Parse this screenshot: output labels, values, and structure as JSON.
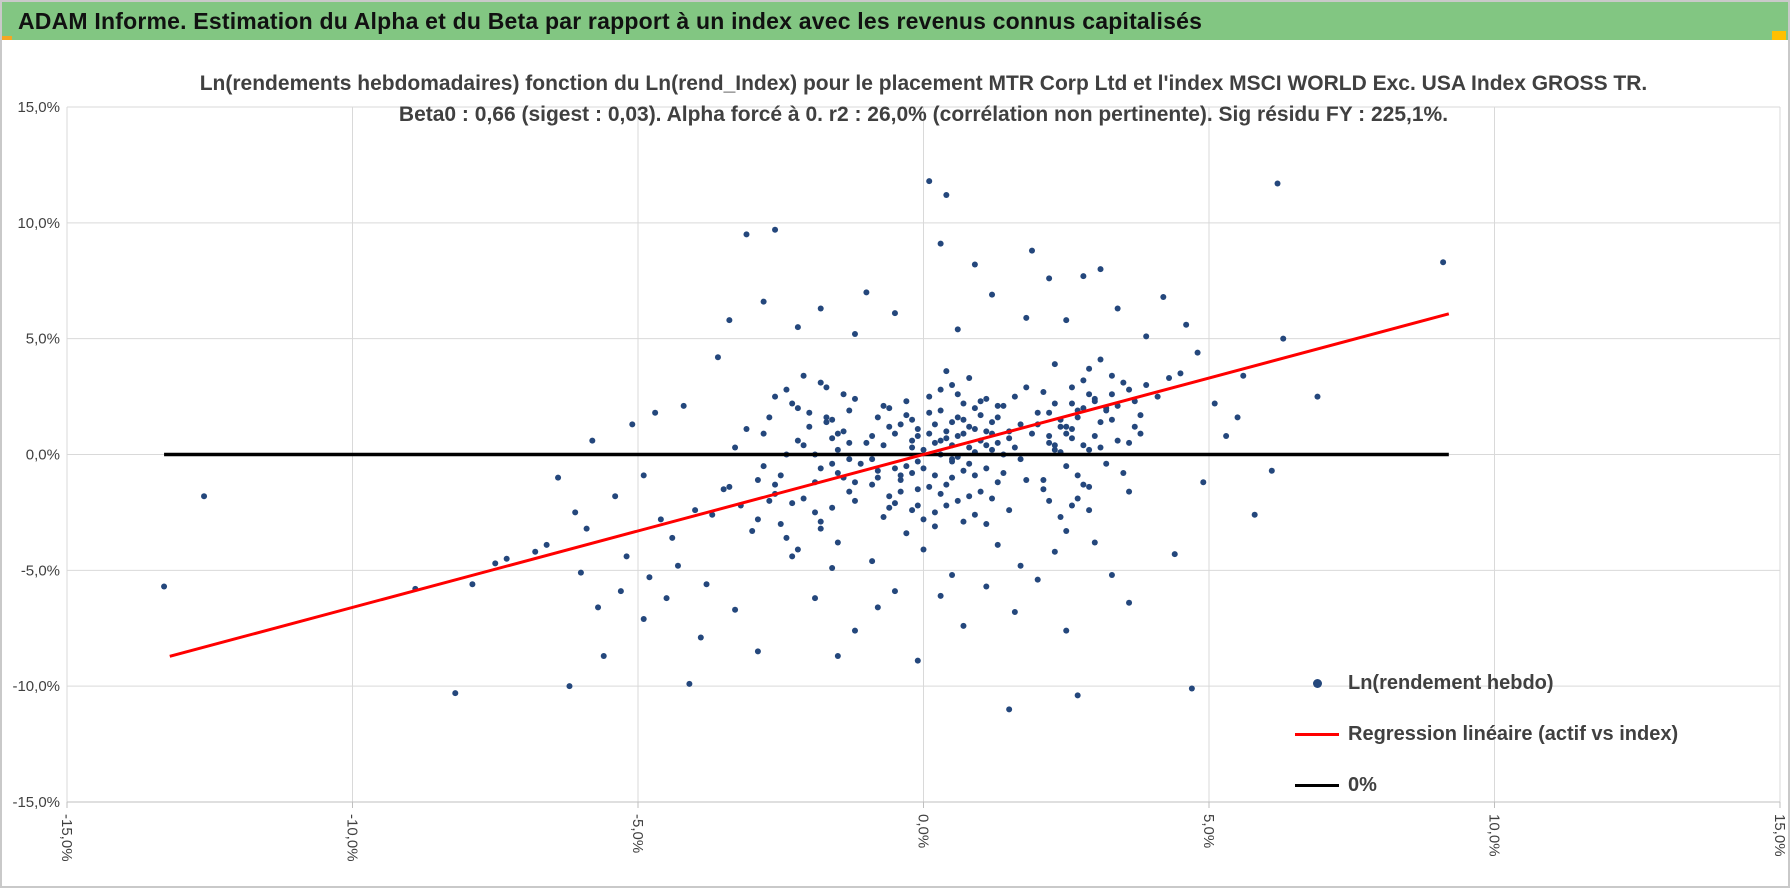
{
  "header": {
    "title": "ADAM Informe. Estimation du Alpha et du Beta par rapport à un index avec les revenus connus capitalisés",
    "bar_color": "#82C682",
    "accent_left_color": "#F5A623",
    "accent_right_color": "#FFC000"
  },
  "chart_data": {
    "type": "scatter",
    "title_line1": "Ln(rendements hebdomadaires) fonction du Ln(rend_Index) pour le placement MTR Corp Ltd et l'index MSCI WORLD Exc. USA Index GROSS TR.",
    "title_line2": "Beta0 : 0,66 (sigest : 0,03).  Alpha forcé à 0. r2 : 26,0% (corrélation non pertinente). Sig résidu FY : 225,1%.",
    "stats": {
      "beta0": "0,66",
      "sigest": "0,03",
      "alpha": "forcé à 0",
      "r2": "26,0%",
      "correlation_note": "corrélation non pertinente",
      "sig_residu_fy": "225,1%"
    },
    "xlabel": "",
    "ylabel": "",
    "xlim": [
      -15,
      15
    ],
    "ylim": [
      -15,
      15
    ],
    "grid": true,
    "x_tick_values": [
      -15,
      -10,
      -5,
      0,
      5,
      10,
      15
    ],
    "y_tick_values": [
      -15,
      -10,
      -5,
      0,
      5,
      10,
      15
    ],
    "x_tick_labels": [
      "-15,0%",
      "-10,0%",
      "-5,0%",
      "0,0%",
      "5,0%",
      "10,0%",
      "15,0%"
    ],
    "y_tick_labels": [
      "-15,0%",
      "-10,0%",
      "-5,0%",
      "0,0%",
      "5,0%",
      "10,0%",
      "15,0%"
    ],
    "colors": {
      "point": "#24477C",
      "regression": "#FF0000",
      "zero_line": "#000000",
      "grid": "#D9D9D9",
      "axis": "#BFBFBF",
      "text": "#404040"
    },
    "legend": [
      {
        "label": "Ln(rendement hebdo)",
        "marker": "point",
        "color": "#24477C"
      },
      {
        "label": "Regression linéaire (actif vs index)",
        "marker": "line",
        "color": "#FF0000"
      },
      {
        "label": "0%",
        "marker": "line",
        "color": "#000000"
      }
    ],
    "legend_position": "inside-bottom-right",
    "regression_line": {
      "beta": 0.66,
      "alpha": 0,
      "x_start": -13.2,
      "x_end": 9.2
    },
    "zero_line": {
      "y": 0,
      "x_start": -13.3,
      "x_end": 9.2
    },
    "points": [
      [
        0.2,
        0.5
      ],
      [
        0.5,
        -0.3
      ],
      [
        -0.1,
        0.8
      ],
      [
        0.8,
        1.2
      ],
      [
        1.1,
        -0.6
      ],
      [
        -0.4,
        -1.1
      ],
      [
        0.3,
        1.9
      ],
      [
        0.9,
        0.1
      ],
      [
        -0.7,
        0.4
      ],
      [
        1.4,
        2.1
      ],
      [
        0.1,
        -1.4
      ],
      [
        0.6,
        2.6
      ],
      [
        -0.2,
        -0.8
      ],
      [
        1.2,
        0.9
      ],
      [
        0.4,
        -2.2
      ],
      [
        -0.9,
        -0.2
      ],
      [
        0.7,
        1.5
      ],
      [
        1.6,
        0.3
      ],
      [
        -0.3,
        2.3
      ],
      [
        0.2,
        -0.9
      ],
      [
        1.0,
        0.6
      ],
      [
        -0.6,
        -1.8
      ],
      [
        0.5,
        3.0
      ],
      [
        1.3,
        -1.2
      ],
      [
        -0.1,
        1.1
      ],
      [
        0.8,
        -0.4
      ],
      [
        2.0,
        1.8
      ],
      [
        -0.5,
        0.9
      ],
      [
        0.3,
        -1.7
      ],
      [
        1.1,
        2.4
      ],
      [
        0.0,
        0.2
      ],
      [
        0.9,
        -2.6
      ],
      [
        -0.8,
        1.6
      ],
      [
        1.5,
        1.0
      ],
      [
        0.4,
        0.7
      ],
      [
        -0.2,
        -2.4
      ],
      [
        0.6,
        -0.1
      ],
      [
        1.8,
        2.9
      ],
      [
        -0.4,
        1.3
      ],
      [
        0.1,
        0.9
      ],
      [
        1.2,
        -1.9
      ],
      [
        -1.0,
        0.5
      ],
      [
        0.7,
        2.2
      ],
      [
        1.4,
        -0.8
      ],
      [
        -0.3,
        -0.5
      ],
      [
        0.5,
        1.4
      ],
      [
        2.2,
        0.8
      ],
      [
        -0.6,
        2.0
      ],
      [
        0.2,
        -3.1
      ],
      [
        1.0,
        1.7
      ],
      [
        0.3,
        0.0
      ],
      [
        -0.1,
        -1.5
      ],
      [
        0.8,
        3.3
      ],
      [
        1.7,
        -0.2
      ],
      [
        -0.7,
        -2.7
      ],
      [
        0.4,
        1.0
      ],
      [
        1.1,
        0.4
      ],
      [
        -0.4,
        -0.9
      ],
      [
        0.6,
        -2.0
      ],
      [
        1.3,
        1.6
      ],
      [
        0.0,
        -0.6
      ],
      [
        0.9,
        1.1
      ],
      [
        -0.9,
        -1.3
      ],
      [
        1.6,
        2.5
      ],
      [
        0.5,
        -1.0
      ],
      [
        -0.2,
        0.6
      ],
      [
        0.7,
        -2.9
      ],
      [
        2.4,
        1.2
      ],
      [
        -0.5,
        -2.1
      ],
      [
        0.1,
        1.8
      ],
      [
        1.2,
        0.2
      ],
      [
        -0.8,
        -0.7
      ],
      [
        0.3,
        2.8
      ],
      [
        1.9,
        0.9
      ],
      [
        -0.1,
        -2.2
      ],
      [
        0.6,
        0.8
      ],
      [
        1.0,
        -1.6
      ],
      [
        -0.6,
        1.2
      ],
      [
        0.8,
        0.3
      ],
      [
        1.5,
        -2.4
      ],
      [
        0.2,
        1.3
      ],
      [
        -0.3,
        -3.4
      ],
      [
        0.9,
        2.0
      ],
      [
        1.3,
        0.5
      ],
      [
        -1.1,
        -0.4
      ],
      [
        0.4,
        -1.3
      ],
      [
        2.1,
        2.7
      ],
      [
        -0.2,
        1.5
      ],
      [
        0.7,
        -0.7
      ],
      [
        1.1,
        1.0
      ],
      [
        0.0,
        -2.8
      ],
      [
        0.5,
        0.4
      ],
      [
        -0.7,
        2.1
      ],
      [
        1.8,
        -1.1
      ],
      [
        0.3,
        0.6
      ],
      [
        -0.4,
        -1.6
      ],
      [
        1.0,
        2.3
      ],
      [
        1.4,
        0.0
      ],
      [
        -0.1,
        -0.3
      ],
      [
        0.6,
        1.6
      ],
      [
        2.6,
        2.2
      ],
      [
        -0.9,
        0.8
      ],
      [
        0.2,
        -2.5
      ],
      [
        1.2,
        1.4
      ],
      [
        0.4,
        3.6
      ],
      [
        -0.5,
        -0.6
      ],
      [
        0.8,
        -1.8
      ],
      [
        1.7,
        1.3
      ],
      [
        -0.2,
        0.3
      ],
      [
        0.9,
        -0.9
      ],
      [
        0.1,
        2.5
      ],
      [
        -0.6,
        -2.3
      ],
      [
        1.5,
        0.7
      ],
      [
        0.5,
        -0.2
      ],
      [
        -0.3,
        1.7
      ],
      [
        1.1,
        -3.0
      ],
      [
        2.3,
        0.4
      ],
      [
        -0.8,
        -1.0
      ],
      [
        0.7,
        0.9
      ],
      [
        1.3,
        2.1
      ],
      [
        -1.5,
        -0.8
      ],
      [
        2.8,
        3.2
      ],
      [
        -2.1,
        0.4
      ],
      [
        3.3,
        1.5
      ],
      [
        -1.8,
        -2.9
      ],
      [
        2.5,
        -0.5
      ],
      [
        -2.6,
        -1.7
      ],
      [
        3.0,
        2.4
      ],
      [
        -1.3,
        1.9
      ],
      [
        2.9,
        0.2
      ],
      [
        -2.4,
        -3.6
      ],
      [
        3.6,
        2.8
      ],
      [
        -1.6,
        0.7
      ],
      [
        2.7,
        -1.9
      ],
      [
        -3.2,
        -2.2
      ],
      [
        3.1,
        4.1
      ],
      [
        -1.9,
        -1.2
      ],
      [
        2.6,
        1.1
      ],
      [
        -2.8,
        0.9
      ],
      [
        3.8,
        1.7
      ],
      [
        -1.4,
        2.6
      ],
      [
        2.4,
        -2.7
      ],
      [
        -2.2,
        -4.1
      ],
      [
        3.4,
        0.6
      ],
      [
        -1.7,
        1.4
      ],
      [
        2.9,
        3.7
      ],
      [
        -3.5,
        -1.5
      ],
      [
        2.5,
        0.9
      ],
      [
        -1.2,
        -2.0
      ],
      [
        3.2,
        2.0
      ],
      [
        -2.0,
        1.2
      ],
      [
        2.8,
        -1.3
      ],
      [
        -2.9,
        -2.8
      ],
      [
        3.9,
        3.0
      ],
      [
        -1.5,
        0.2
      ],
      [
        2.3,
        2.2
      ],
      [
        -2.5,
        -0.9
      ],
      [
        3.5,
        -0.8
      ],
      [
        -1.8,
        3.1
      ],
      [
        2.7,
        1.6
      ],
      [
        -3.0,
        -3.3
      ],
      [
        2.2,
        0.5
      ],
      [
        -1.3,
        -1.6
      ],
      [
        4.1,
        2.5
      ],
      [
        -2.3,
        2.2
      ],
      [
        2.6,
        -2.2
      ],
      [
        -1.6,
        -0.4
      ],
      [
        3.3,
        3.4
      ],
      [
        -2.7,
        1.6
      ],
      [
        2.4,
        0.1
      ],
      [
        -1.9,
        -2.5
      ],
      [
        3.7,
        1.2
      ],
      [
        -1.4,
        1.0
      ],
      [
        2.1,
        -1.5
      ],
      [
        -3.3,
        0.3
      ],
      [
        2.9,
        2.6
      ],
      [
        -2.1,
        -1.9
      ],
      [
        3.0,
        0.8
      ],
      [
        -1.7,
        2.9
      ],
      [
        2.5,
        -3.3
      ],
      [
        -2.6,
        2.5
      ],
      [
        3.2,
        1.9
      ],
      [
        -1.2,
        -1.2
      ],
      [
        2.8,
        0.4
      ],
      [
        -3.7,
        -2.6
      ],
      [
        2.2,
        1.8
      ],
      [
        -2.4,
        0.0
      ],
      [
        3.6,
        -1.6
      ],
      [
        -1.5,
        -3.8
      ],
      [
        2.6,
        2.9
      ],
      [
        -2.0,
        1.8
      ],
      [
        3.1,
        0.3
      ],
      [
        -1.8,
        -0.6
      ],
      [
        2.3,
        3.9
      ],
      [
        -2.9,
        -1.1
      ],
      [
        3.4,
        2.1
      ],
      [
        -1.3,
        0.5
      ],
      [
        2.7,
        -0.9
      ],
      [
        -2.2,
        2.0
      ],
      [
        3.8,
        0.9
      ],
      [
        -1.6,
        -2.3
      ],
      [
        2.0,
        1.3
      ],
      [
        -3.1,
        1.1
      ],
      [
        2.9,
        -2.4
      ],
      [
        -1.9,
        0.0
      ],
      [
        3.5,
        3.1
      ],
      [
        -2.5,
        -3.0
      ],
      [
        2.4,
        1.5
      ],
      [
        -1.4,
        -1.0
      ],
      [
        3.0,
        2.3
      ],
      [
        -2.8,
        -0.5
      ],
      [
        2.1,
        -1.1
      ],
      [
        -1.7,
        1.6
      ],
      [
        4.3,
        3.3
      ],
      [
        -2.3,
        -2.1
      ],
      [
        2.6,
        0.7
      ],
      [
        -1.2,
        2.4
      ],
      [
        3.2,
        -0.4
      ],
      [
        -3.4,
        -1.4
      ],
      [
        2.8,
        2.0
      ],
      [
        -2.1,
        3.4
      ],
      [
        2.2,
        -2.0
      ],
      [
        -1.5,
        0.9
      ],
      [
        3.7,
        2.3
      ],
      [
        -2.6,
        -1.3
      ],
      [
        2.5,
        1.2
      ],
      [
        -1.8,
        -3.2
      ],
      [
        3.1,
        1.4
      ],
      [
        -2.2,
        0.6
      ],
      [
        2.9,
        -1.4
      ],
      [
        -4.0,
        -2.4
      ],
      [
        3.3,
        2.6
      ],
      [
        -1.6,
        1.5
      ],
      [
        2.3,
        0.2
      ],
      [
        -2.7,
        -2.0
      ],
      [
        4.5,
        3.5
      ],
      [
        -1.3,
        -0.2
      ],
      [
        2.7,
        1.9
      ],
      [
        -2.4,
        2.8
      ],
      [
        3.6,
        0.5
      ],
      [
        0.1,
        11.8
      ],
      [
        0.4,
        11.2
      ],
      [
        6.2,
        11.7
      ],
      [
        -2.6,
        9.7
      ],
      [
        -3.1,
        9.5
      ],
      [
        0.3,
        9.1
      ],
      [
        9.1,
        8.3
      ],
      [
        2.8,
        7.7
      ],
      [
        2.2,
        7.6
      ],
      [
        4.2,
        6.8
      ],
      [
        1.2,
        6.9
      ],
      [
        3.4,
        6.3
      ],
      [
        -0.5,
        6.1
      ],
      [
        1.8,
        5.9
      ],
      [
        4.6,
        5.6
      ],
      [
        0.6,
        5.4
      ],
      [
        2.5,
        5.8
      ],
      [
        -1.2,
        5.2
      ],
      [
        3.9,
        5.1
      ],
      [
        6.3,
        5.0
      ],
      [
        -13.3,
        -5.7
      ],
      [
        -12.6,
        -1.8
      ],
      [
        -8.2,
        -10.3
      ],
      [
        -6.2,
        -10.0
      ],
      [
        1.5,
        -11.0
      ],
      [
        2.7,
        -10.4
      ],
      [
        4.7,
        -10.1
      ],
      [
        -4.1,
        -9.9
      ],
      [
        -5.6,
        -8.7
      ],
      [
        -0.1,
        -8.9
      ],
      [
        -1.5,
        -8.7
      ],
      [
        -2.9,
        -8.5
      ],
      [
        -3.9,
        -7.9
      ],
      [
        0.7,
        -7.4
      ],
      [
        2.5,
        -7.6
      ],
      [
        1.6,
        -6.8
      ],
      [
        -5.7,
        -6.6
      ],
      [
        3.6,
        -6.4
      ],
      [
        -4.5,
        -6.2
      ],
      [
        -0.8,
        -6.6
      ],
      [
        -8.9,
        -5.8
      ],
      [
        -7.9,
        -5.6
      ],
      [
        -7.3,
        -4.5
      ],
      [
        -7.5,
        -4.7
      ],
      [
        -6.6,
        -3.9
      ],
      [
        -5.9,
        -3.2
      ],
      [
        -5.2,
        -4.4
      ],
      [
        -4.8,
        -5.3
      ],
      [
        -4.4,
        -3.6
      ],
      [
        -6.1,
        -2.5
      ],
      [
        -5.4,
        -1.8
      ],
      [
        -4.9,
        -0.9
      ],
      [
        -5.1,
        1.3
      ],
      [
        -4.6,
        -2.8
      ],
      [
        -4.2,
        2.1
      ],
      [
        -4.3,
        -4.8
      ],
      [
        -3.8,
        -5.6
      ],
      [
        -3.6,
        4.2
      ],
      [
        -3.3,
        -6.7
      ],
      [
        5.1,
        2.2
      ],
      [
        5.6,
        3.4
      ],
      [
        4.9,
        -1.2
      ],
      [
        5.3,
        0.8
      ],
      [
        6.9,
        2.5
      ],
      [
        5.8,
        -2.6
      ],
      [
        4.8,
        4.4
      ],
      [
        5.5,
        1.6
      ],
      [
        6.1,
        -0.7
      ],
      [
        4.4,
        -4.3
      ],
      [
        3.3,
        -5.2
      ],
      [
        -6.4,
        -1.0
      ],
      [
        -5.8,
        0.6
      ],
      [
        -6.8,
        -4.2
      ],
      [
        -4.7,
        1.8
      ],
      [
        -5.3,
        -5.9
      ],
      [
        -4.9,
        -7.1
      ],
      [
        -6.0,
        -5.1
      ],
      [
        -3.4,
        5.8
      ],
      [
        -2.8,
        6.6
      ],
      [
        -2.2,
        5.5
      ],
      [
        -1.8,
        6.3
      ],
      [
        -1.0,
        7.0
      ],
      [
        0.9,
        8.2
      ],
      [
        1.9,
        8.8
      ],
      [
        3.1,
        8.0
      ],
      [
        -0.5,
        -5.9
      ],
      [
        0.3,
        -6.1
      ],
      [
        1.1,
        -5.7
      ],
      [
        -1.9,
        -6.2
      ],
      [
        2.0,
        -5.4
      ],
      [
        -1.2,
        -7.6
      ],
      [
        0.5,
        -5.2
      ],
      [
        1.7,
        -4.8
      ],
      [
        -0.9,
        -4.6
      ],
      [
        2.3,
        -4.2
      ],
      [
        -1.6,
        -4.9
      ],
      [
        3.0,
        -3.8
      ],
      [
        -2.3,
        -4.4
      ],
      [
        0.0,
        -4.1
      ],
      [
        1.3,
        -3.9
      ]
    ]
  }
}
